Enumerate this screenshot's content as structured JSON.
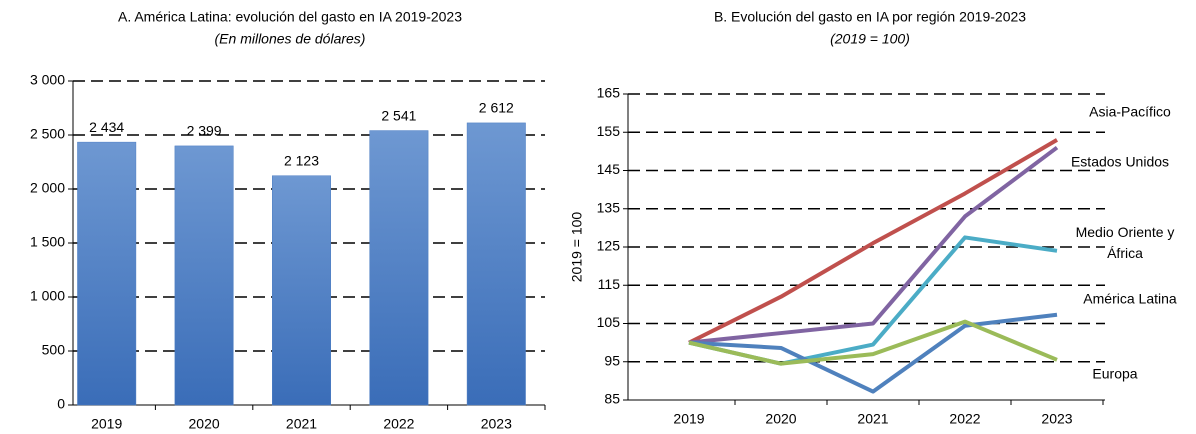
{
  "chart_data": [
    {
      "type": "bar",
      "title": "A. América Latina: evolución del gasto en IA 2019-2023",
      "subtitle": "(En millones de dólares)",
      "categories": [
        "2019",
        "2020",
        "2021",
        "2022",
        "2023"
      ],
      "values": [
        2434,
        2399,
        2123,
        2541,
        2612
      ],
      "value_labels": [
        "2 434",
        "2 399",
        "2 123",
        "2 541",
        "2 612"
      ],
      "color": "#4a7cc2",
      "ylim": [
        0,
        3000
      ],
      "yticks": [
        0,
        500,
        {
          "value": 1000,
          "label": "1 000"
        },
        {
          "value": 1500,
          "label": "1 500"
        },
        {
          "value": 2000,
          "label": "2 000"
        },
        {
          "value": 2500,
          "label": "2 500"
        },
        {
          "value": 3000,
          "label": "3 000"
        }
      ],
      "grid": true
    },
    {
      "type": "line",
      "title": "B. Evolución del gasto en IA por región 2019-2023",
      "subtitle": "(2019 = 100)",
      "ylabel": "2019 = 100",
      "categories": [
        "2019",
        "2020",
        "2021",
        "2022",
        "2023"
      ],
      "series": [
        {
          "name": "Asia-Pacífico",
          "color": "#c0504d",
          "values": [
            100,
            112,
            126,
            139,
            153
          ]
        },
        {
          "name": "Estados Unidos",
          "color": "#8064a2",
          "values": [
            100,
            102.5,
            105,
            133,
            151
          ]
        },
        {
          "name": "Medio Oriente y África",
          "color": "#4bacc6",
          "values": [
            100,
            94.5,
            99.5,
            127.5,
            124
          ]
        },
        {
          "name": "América Latina",
          "color": "#4f81bd",
          "values": [
            100,
            98.6,
            87.2,
            104.4,
            107.3
          ]
        },
        {
          "name": "Europa",
          "color": "#9bbb59",
          "values": [
            100,
            94.5,
            97,
            105.5,
            95.5
          ]
        }
      ],
      "ylim": [
        85,
        165
      ],
      "yticks": [
        85,
        95,
        105,
        115,
        125,
        135,
        145,
        155,
        165
      ],
      "grid": true
    }
  ]
}
